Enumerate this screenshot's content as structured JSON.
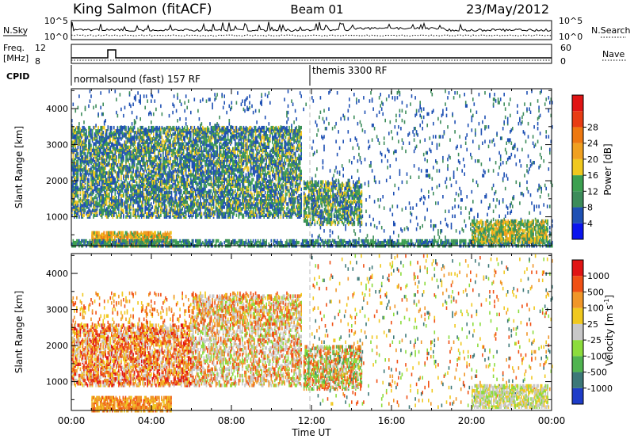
{
  "header": {
    "station": "King Salmon (fitACF)",
    "beam": "Beam 01",
    "date": "23/May/2012"
  },
  "noise_panel": {
    "left_label": "N.Sky",
    "left_ticks": [
      "10^5",
      "10^0"
    ],
    "right_ticks": [
      "10^5",
      "10^0"
    ],
    "right_label": "N.Search"
  },
  "freq_panel": {
    "left_label_1": "Freq.",
    "left_label_2": "[MHz]",
    "left_ticks": [
      "12",
      "8"
    ],
    "right_ticks": [
      "60",
      "0"
    ],
    "right_label": "Nave"
  },
  "cpid_panel": {
    "label": "CPID",
    "segments": [
      {
        "label": "normalsound (fast) 157 RF",
        "start": "00:00"
      },
      {
        "label": "themis 3300 RF",
        "start": "12:00"
      }
    ]
  },
  "chart_data": [
    {
      "type": "heatmap",
      "panel": "power",
      "ylabel": "Slant Range [km]",
      "yticks": [
        1000,
        2000,
        3000,
        4000
      ],
      "ylim": [
        200,
        4550
      ],
      "xlim_hours": [
        0,
        24
      ],
      "colorbar": {
        "label": "Power [dB]",
        "ticks": [
          "4",
          "8",
          "12",
          "16",
          "20",
          "24",
          "28"
        ],
        "colors": [
          "#0a14ee",
          "#1e50b4",
          "#3c8c5a",
          "#3ca050",
          "#f0c81e",
          "#f0a020",
          "#ee7810",
          "#e83c14",
          "#e01414"
        ]
      },
      "regions": [
        {
          "t0": 0.0,
          "t1": 11.5,
          "r0": 1000,
          "r1": 3500,
          "density": 0.55,
          "levels": [
            1,
            1,
            2,
            3,
            4
          ]
        },
        {
          "t0": 0.0,
          "t1": 11.8,
          "r0": 3400,
          "r1": 4500,
          "density": 0.05,
          "levels": [
            1,
            1,
            2
          ]
        },
        {
          "t0": 1.0,
          "t1": 5.0,
          "r0": 200,
          "r1": 600,
          "density": 0.7,
          "levels": [
            4,
            5,
            5,
            6,
            3
          ]
        },
        {
          "t0": 0.0,
          "t1": 24.0,
          "r0": 200,
          "r1": 340,
          "density": 0.6,
          "levels": [
            1,
            2,
            3
          ]
        },
        {
          "t0": 11.6,
          "t1": 14.5,
          "r0": 800,
          "r1": 2000,
          "density": 0.5,
          "levels": [
            1,
            2,
            3,
            4
          ]
        },
        {
          "t0": 12.0,
          "t1": 24.0,
          "r0": 300,
          "r1": 4500,
          "density": 0.045,
          "levels": [
            1,
            1,
            2
          ]
        },
        {
          "t0": 20.0,
          "t1": 23.8,
          "r0": 300,
          "r1": 900,
          "density": 0.6,
          "levels": [
            2,
            3,
            4,
            5
          ]
        }
      ]
    },
    {
      "type": "heatmap",
      "panel": "velocity",
      "ylabel": "Slant Range [km]",
      "yticks": [
        1000,
        2000,
        3000,
        4000
      ],
      "ylim": [
        200,
        4550
      ],
      "xlim_hours": [
        0,
        24
      ],
      "xticks": [
        "00:00",
        "04:00",
        "08:00",
        "12:00",
        "16:00",
        "20:00",
        "00:00"
      ],
      "xlabel": "Time UT",
      "colorbar": {
        "label": "Velocity [m s^-1]",
        "ticks": [
          "1000",
          "500",
          "100",
          "25",
          "-25",
          "-100",
          "-500",
          "-1000"
        ],
        "colors": [
          "#1e3cc8",
          "#3c7878",
          "#50b450",
          "#8cdc3c",
          "#c8c8c8",
          "#f0c81e",
          "#f09628",
          "#f05014",
          "#e01414"
        ]
      },
      "regions": [
        {
          "t0": 0.0,
          "t1": 6.0,
          "r0": 900,
          "r1": 2600,
          "density": 0.55,
          "levels": [
            5,
            6,
            7,
            8,
            4
          ]
        },
        {
          "t0": 6.0,
          "t1": 11.5,
          "r0": 900,
          "r1": 3400,
          "density": 0.4,
          "levels": [
            4,
            4,
            6,
            7,
            3
          ]
        },
        {
          "t0": 0.0,
          "t1": 11.5,
          "r0": 2600,
          "r1": 3500,
          "density": 0.12,
          "levels": [
            5,
            6,
            7
          ]
        },
        {
          "t0": 1.0,
          "t1": 5.0,
          "r0": 200,
          "r1": 600,
          "density": 0.65,
          "levels": [
            5,
            6,
            6,
            7
          ]
        },
        {
          "t0": 11.6,
          "t1": 14.5,
          "r0": 800,
          "r1": 2000,
          "density": 0.5,
          "levels": [
            2,
            3,
            4,
            6,
            7
          ]
        },
        {
          "t0": 12.0,
          "t1": 24.0,
          "r0": 300,
          "r1": 4500,
          "density": 0.04,
          "levels": [
            1,
            3,
            5,
            6,
            7
          ]
        },
        {
          "t0": 20.0,
          "t1": 23.8,
          "r0": 300,
          "r1": 900,
          "density": 0.6,
          "levels": [
            4,
            4,
            5,
            3
          ]
        }
      ]
    }
  ]
}
